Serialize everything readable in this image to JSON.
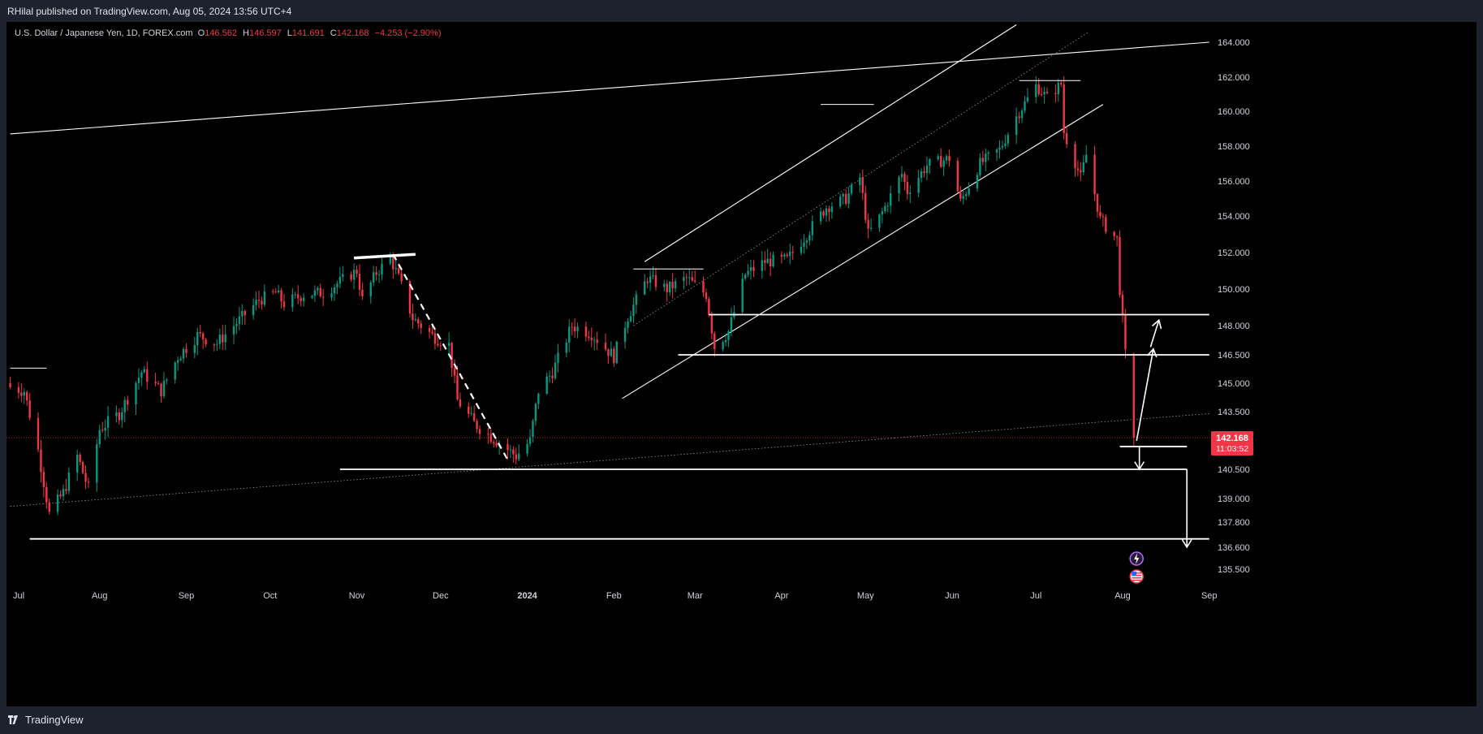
{
  "header": {
    "publisher": "RHilal published on TradingView.com, Aug 05, 2024 13:56 UTC+4"
  },
  "legend": {
    "symbol": "U.S. Dollar / Japanese Yen, 1D, FOREX.com",
    "open_label": "O",
    "open": "146.562",
    "high_label": "H",
    "high": "146.597",
    "low_label": "L",
    "low": "141.691",
    "close_label": "C",
    "close": "142.168",
    "change": "−4.253 (−2.90%)"
  },
  "footer": {
    "brand": "TradingView"
  },
  "colors": {
    "up": "#089981",
    "down": "#f23645",
    "background": "#000000",
    "frame": "#1e222d",
    "drawing": "#ffffff",
    "price_line": "#f23645"
  },
  "icons": [
    "tradingview-logo-icon",
    "event-bolt-icon",
    "us-flag-icon"
  ],
  "chart_data": {
    "type": "candlestick",
    "symbol": "USDJPY",
    "timeframe": "1D",
    "x_tick_labels": [
      "Jul",
      "Aug",
      "Sep",
      "Oct",
      "Nov",
      "Dec",
      "2024",
      "Feb",
      "Mar",
      "Apr",
      "May",
      "Jun",
      "Jul",
      "Aug",
      "Sep"
    ],
    "x_ticks": [
      "2023-07-01",
      "2023-08-01",
      "2023-09-01",
      "2023-10-01",
      "2023-11-01",
      "2023-12-01",
      "2024-01-01",
      "2024-02-01",
      "2024-03-01",
      "2024-04-01",
      "2024-05-01",
      "2024-06-01",
      "2024-07-01",
      "2024-08-01",
      "2024-09-01"
    ],
    "y_tick_labels": [
      "164.000",
      "162.000",
      "160.000",
      "158.000",
      "156.000",
      "154.000",
      "152.000",
      "150.000",
      "148.000",
      "146.500",
      "145.000",
      "143.500",
      "140.500",
      "139.000",
      "137.800",
      "136.600",
      "135.500"
    ],
    "y_ticks": [
      164.0,
      162.0,
      160.0,
      158.0,
      156.0,
      154.0,
      152.0,
      150.0,
      148.0,
      146.5,
      145.0,
      143.5,
      140.5,
      139.0,
      137.8,
      136.6,
      135.5
    ],
    "ylim": [
      134.8,
      165.0
    ],
    "grid": false,
    "last_price": {
      "value": 142.168,
      "label": "142.168",
      "countdown": "11:03:52"
    },
    "anchors": [
      [
        "2023-06-30",
        144.8
      ],
      [
        "2023-07-05",
        144.6
      ],
      [
        "2023-07-10",
        141.5
      ],
      [
        "2023-07-14",
        138.2
      ],
      [
        "2023-07-19",
        139.3
      ],
      [
        "2023-07-24",
        141.2
      ],
      [
        "2023-07-28",
        139.5
      ],
      [
        "2023-08-01",
        142.6
      ],
      [
        "2023-08-08",
        143.4
      ],
      [
        "2023-08-16",
        145.6
      ],
      [
        "2023-08-23",
        144.6
      ],
      [
        "2023-08-29",
        146.4
      ],
      [
        "2023-09-05",
        147.5
      ],
      [
        "2023-09-12",
        147.1
      ],
      [
        "2023-09-20",
        148.3
      ],
      [
        "2023-09-27",
        149.4
      ],
      [
        "2023-10-03",
        149.8
      ],
      [
        "2023-10-06",
        149.2
      ],
      [
        "2023-10-13",
        149.7
      ],
      [
        "2023-10-20",
        149.8
      ],
      [
        "2023-10-26",
        150.4
      ],
      [
        "2023-11-01",
        151.0
      ],
      [
        "2023-11-03",
        149.4
      ],
      [
        "2023-11-08",
        150.9
      ],
      [
        "2023-11-13",
        151.7
      ],
      [
        "2023-11-16",
        150.6
      ],
      [
        "2023-11-21",
        148.4
      ],
      [
        "2023-11-28",
        147.5
      ],
      [
        "2023-12-04",
        147.0
      ],
      [
        "2023-12-07",
        144.1
      ],
      [
        "2023-12-13",
        142.9
      ],
      [
        "2023-12-21",
        142.0
      ],
      [
        "2023-12-28",
        141.2
      ],
      [
        "2024-01-02",
        142.0
      ],
      [
        "2024-01-05",
        144.6
      ],
      [
        "2024-01-10",
        145.6
      ],
      [
        "2024-01-17",
        148.0
      ],
      [
        "2024-01-24",
        147.6
      ],
      [
        "2024-02-01",
        146.4
      ],
      [
        "2024-02-06",
        148.5
      ],
      [
        "2024-02-13",
        150.6
      ],
      [
        "2024-02-20",
        150.0
      ],
      [
        "2024-02-27",
        150.6
      ],
      [
        "2024-03-05",
        149.7
      ],
      [
        "2024-03-08",
        146.9
      ],
      [
        "2024-03-13",
        147.7
      ],
      [
        "2024-03-19",
        150.8
      ],
      [
        "2024-03-26",
        151.5
      ],
      [
        "2024-04-03",
        151.6
      ],
      [
        "2024-04-10",
        153.0
      ],
      [
        "2024-04-17",
        154.5
      ],
      [
        "2024-04-24",
        155.0
      ],
      [
        "2024-04-29",
        156.2
      ],
      [
        "2024-05-02",
        153.0
      ],
      [
        "2024-05-06",
        153.9
      ],
      [
        "2024-05-14",
        156.4
      ],
      [
        "2024-05-16",
        155.4
      ],
      [
        "2024-05-23",
        156.9
      ],
      [
        "2024-05-31",
        157.3
      ],
      [
        "2024-06-04",
        154.8
      ],
      [
        "2024-06-11",
        157.0
      ],
      [
        "2024-06-18",
        157.8
      ],
      [
        "2024-06-24",
        159.7
      ],
      [
        "2024-07-01",
        161.5
      ],
      [
        "2024-07-05",
        160.8
      ],
      [
        "2024-07-10",
        161.6
      ],
      [
        "2024-07-11",
        158.8
      ],
      [
        "2024-07-17",
        156.2
      ],
      [
        "2024-07-19",
        157.5
      ],
      [
        "2024-07-24",
        153.8
      ],
      [
        "2024-07-30",
        152.7
      ],
      [
        "2024-07-31",
        150.0
      ],
      [
        "2024-08-02",
        146.5
      ],
      [
        "2024-08-05",
        142.168
      ]
    ],
    "drawings": {
      "horizontal_levels": [
        {
          "value": 148.6,
          "from": "2024-03-06",
          "to": "2024-09-01"
        },
        {
          "value": 146.5,
          "from": "2024-02-24",
          "to": "2024-09-01"
        },
        {
          "value": 141.7,
          "from": "2024-07-31",
          "to": "2024-08-24"
        },
        {
          "value": 140.5,
          "from": "2023-10-26",
          "to": "2024-08-24"
        },
        {
          "value": 137.0,
          "from": "2023-07-07",
          "to": "2024-09-01"
        }
      ],
      "top_markers": [
        {
          "value": 161.8,
          "from": "2024-06-25",
          "to": "2024-07-17"
        },
        {
          "value": 160.4,
          "from": "2024-04-15",
          "to": "2024-05-04"
        },
        {
          "value": 151.1,
          "from": "2024-02-08",
          "to": "2024-03-04"
        },
        {
          "value": 145.8,
          "from": "2023-06-30",
          "to": "2023-07-13"
        },
        {
          "value": 137.0,
          "from": "2023-07-07",
          "to": "2023-07-31"
        }
      ],
      "bold_segment": {
        "from": [
          "2023-10-31",
          151.7
        ],
        "to": [
          "2023-11-22",
          151.9
        ]
      },
      "dashed_segment": {
        "from": [
          "2023-11-14",
          151.9
        ],
        "to": [
          "2023-12-25",
          141.0
        ]
      },
      "trend_lines": [
        {
          "from": [
            "2023-06-30",
            158.7
          ],
          "to": [
            "2024-09-01",
            164.0
          ]
        },
        {
          "from": [
            "2024-02-04",
            144.2
          ],
          "to": [
            "2024-07-25",
            160.4
          ]
        },
        {
          "from": [
            "2024-02-12",
            151.5
          ],
          "to": [
            "2024-06-24",
            165.0
          ]
        }
      ],
      "dotted_lines": [
        {
          "from": [
            "2023-06-30",
            138.6
          ],
          "to": [
            "2024-09-01",
            143.4
          ]
        },
        {
          "from": [
            "2024-02-08",
            148.0
          ],
          "to": [
            "2024-07-20",
            164.6
          ]
        }
      ],
      "arrows": [
        {
          "from": [
            "2024-08-06",
            142.0
          ],
          "to": [
            "2024-08-12",
            146.8
          ]
        },
        {
          "from": [
            "2024-08-11",
            146.9
          ],
          "to": [
            "2024-08-14",
            148.3
          ]
        },
        {
          "from": [
            "2024-08-07",
            141.7
          ],
          "to": [
            "2024-08-07",
            140.5
          ]
        },
        {
          "from": [
            "2024-08-24",
            140.5
          ],
          "to": [
            "2024-08-24",
            136.6
          ]
        }
      ]
    }
  }
}
